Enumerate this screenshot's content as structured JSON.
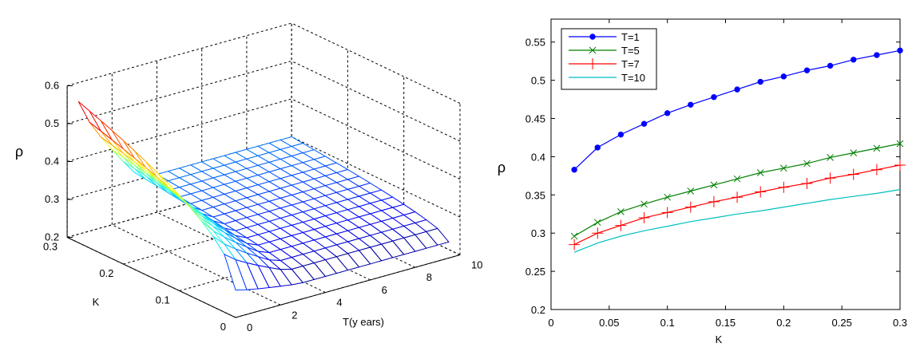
{
  "chart_data": [
    {
      "type": "surface",
      "title": "",
      "zlabel": "ρ",
      "ylabel": "K",
      "xlabel": "T(y ears)",
      "zlim": [
        0.2,
        0.6
      ],
      "z_ticks": [
        "0.2",
        "0.3",
        "0.4",
        "0.5",
        "0.6"
      ],
      "z_tick_values": [
        0.2,
        0.3,
        0.4,
        0.5,
        0.6
      ],
      "k_ticks": [
        "0",
        "0.1",
        "0.2",
        "0.3"
      ],
      "k_tick_values": [
        0,
        0.1,
        0.2,
        0.3
      ],
      "t_ticks": [
        "0",
        "2",
        "4",
        "6",
        "8",
        "10"
      ],
      "t_tick_values": [
        0,
        2,
        4,
        6,
        8,
        10
      ],
      "grid": true,
      "colormap": "jet",
      "T_values": [
        0.5,
        1.0,
        1.5,
        2.0,
        2.5,
        3.0,
        3.5,
        4.0,
        4.5,
        5.0,
        5.5,
        6.0,
        6.5,
        7.0,
        7.5,
        8.0,
        8.5,
        9.0,
        9.5,
        10.0
      ],
      "K_values": [
        0.02,
        0.04,
        0.06,
        0.08,
        0.1,
        0.12,
        0.14,
        0.16,
        0.18,
        0.2,
        0.22,
        0.24,
        0.26,
        0.28,
        0.3
      ],
      "corner_values": {
        "T_min_K_min": 0.25,
        "T_min_K_max": 0.55,
        "T_max_K_min": 0.22,
        "T_max_K_max": 0.3
      }
    },
    {
      "type": "line",
      "title": "",
      "xlabel": "K",
      "ylabel": "ρ",
      "xlim": [
        0,
        0.3
      ],
      "ylim": [
        0.2,
        0.58
      ],
      "x_ticks": [
        "0",
        "0.05",
        "0.1",
        "0.15",
        "0.2",
        "0.25",
        "0.3"
      ],
      "x_tick_values": [
        0,
        0.05,
        0.1,
        0.15,
        0.2,
        0.25,
        0.3
      ],
      "y_ticks": [
        "0.2",
        "0.25",
        "0.3",
        "0.35",
        "0.4",
        "0.45",
        "0.5",
        "0.55"
      ],
      "y_tick_values": [
        0.2,
        0.25,
        0.3,
        0.35,
        0.4,
        0.45,
        0.5,
        0.55
      ],
      "legend_position": "top-left",
      "x": [
        0.02,
        0.04,
        0.06,
        0.08,
        0.1,
        0.12,
        0.14,
        0.16,
        0.18,
        0.2,
        0.22,
        0.24,
        0.26,
        0.28,
        0.3
      ],
      "series": [
        {
          "name": "T=1",
          "color": "#0000ff",
          "marker": "dot",
          "values": [
            0.383,
            0.412,
            0.429,
            0.443,
            0.457,
            0.468,
            0.478,
            0.488,
            0.498,
            0.505,
            0.513,
            0.519,
            0.527,
            0.533,
            0.539
          ]
        },
        {
          "name": "T=5",
          "color": "#008000",
          "marker": "x",
          "values": [
            0.296,
            0.314,
            0.328,
            0.338,
            0.347,
            0.355,
            0.363,
            0.371,
            0.379,
            0.385,
            0.391,
            0.399,
            0.405,
            0.411,
            0.417
          ]
        },
        {
          "name": "T=7",
          "color": "#ff0000",
          "marker": "plus",
          "values": [
            0.285,
            0.3,
            0.31,
            0.32,
            0.327,
            0.334,
            0.341,
            0.347,
            0.354,
            0.36,
            0.365,
            0.372,
            0.377,
            0.383,
            0.389
          ]
        },
        {
          "name": "T=10",
          "color": "#00bfbf",
          "marker": "none",
          "values": [
            0.275,
            0.287,
            0.296,
            0.303,
            0.309,
            0.315,
            0.32,
            0.325,
            0.329,
            0.334,
            0.339,
            0.344,
            0.348,
            0.352,
            0.357
          ]
        }
      ]
    }
  ]
}
